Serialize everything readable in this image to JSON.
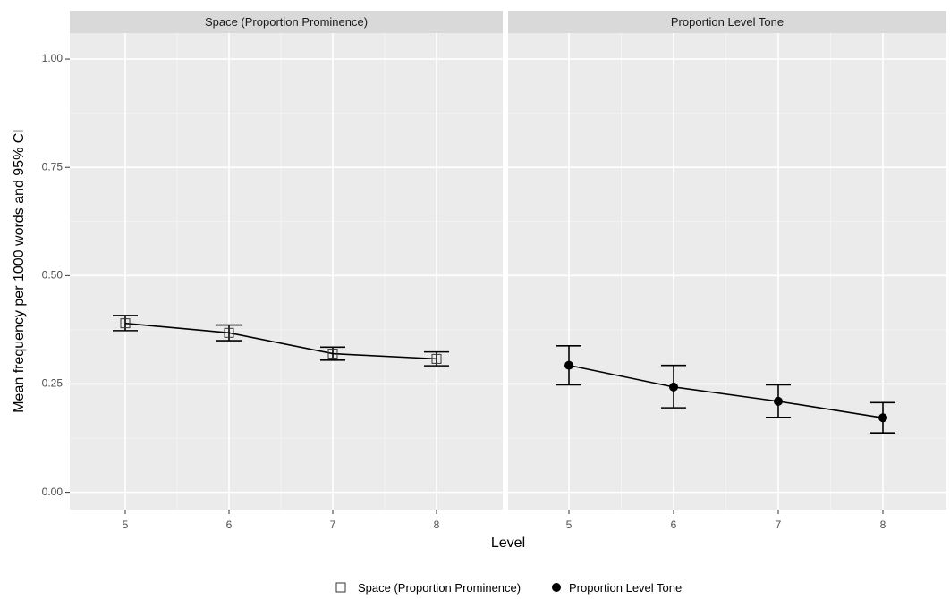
{
  "chart_data": {
    "type": "line",
    "facet_titles": [
      "Space (Proportion Prominence)",
      "Proportion Level Tone"
    ],
    "xlabel": "Level",
    "ylabel": "Mean frequency per 1000 words and 95% CI",
    "x_ticks": [
      "5",
      "6",
      "7",
      "8"
    ],
    "y_ticks": [
      "0.00",
      "0.25",
      "0.50",
      "0.75",
      "1.00"
    ],
    "ylim": [
      -0.04,
      1.06
    ],
    "grid": true,
    "legend_position": "bottom",
    "series": [
      {
        "name": "Space (Proportion Prominence)",
        "marker": "open-square",
        "color": "#000000",
        "x": [
          5,
          6,
          7,
          8
        ],
        "y": [
          0.39,
          0.368,
          0.32,
          0.308
        ],
        "ci_low": [
          0.373,
          0.35,
          0.305,
          0.292
        ],
        "ci_high": [
          0.408,
          0.386,
          0.335,
          0.324
        ]
      },
      {
        "name": "Proportion Level Tone",
        "marker": "filled-circle",
        "color": "#000000",
        "x": [
          5,
          6,
          7,
          8
        ],
        "y": [
          0.293,
          0.243,
          0.21,
          0.172
        ],
        "ci_low": [
          0.248,
          0.195,
          0.173,
          0.137
        ],
        "ci_high": [
          0.338,
          0.293,
          0.248,
          0.207
        ]
      }
    ]
  }
}
